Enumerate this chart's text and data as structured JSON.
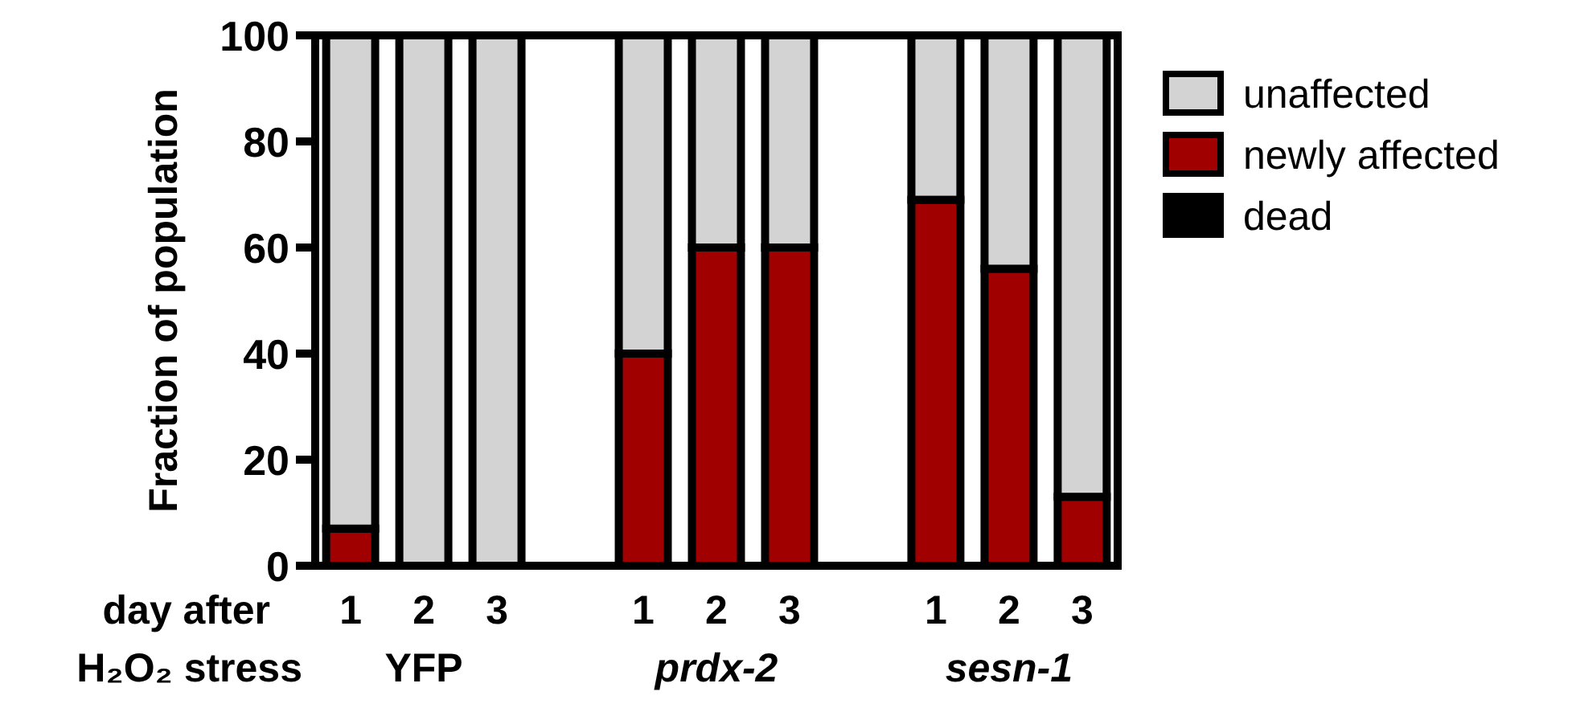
{
  "chart_data": {
    "type": "bar",
    "stacked": true,
    "ylabel": "Fraction of population",
    "categories": [
      "1",
      "2",
      "3",
      null,
      "1",
      "2",
      "3",
      null,
      "1",
      "2",
      "3"
    ],
    "series": [
      {
        "name": "dead",
        "color": "#000000",
        "values": [
          0,
          0,
          0,
          null,
          0,
          0,
          0,
          null,
          0,
          0,
          0
        ]
      },
      {
        "name": "newly affected",
        "color": "#a00000",
        "values": [
          7,
          0,
          0,
          null,
          40,
          60,
          60,
          null,
          69,
          56,
          13
        ]
      },
      {
        "name": "unaffected",
        "color": "#d3d3d3",
        "values": [
          93,
          100,
          100,
          null,
          60,
          40,
          40,
          null,
          31,
          44,
          87
        ]
      }
    ],
    "ylim": [
      0,
      100
    ],
    "yticks": [
      0,
      20,
      40,
      60,
      80,
      100
    ],
    "legend": "right",
    "grid": false,
    "annotations": [
      "day after",
      "H₂O₂ stress",
      "YFP",
      "prdx-2",
      "sesn-1"
    ]
  }
}
